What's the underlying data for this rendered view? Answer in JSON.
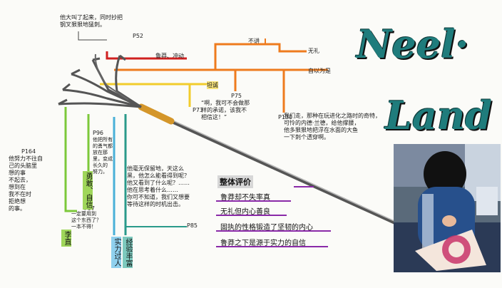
{
  "title": {
    "word1": "Neel·",
    "word2": "Land"
  },
  "notes": {
    "top_quote": "他大叫了起来，同时抄把\n钢叉狠狠地猛刺。",
    "p130": "我们走，那种在玩进化之路时的奇特，\n可怜的内德·兰德，给他撑腰，\n他多狠狠地把浮在水面的大鱼\n一下刺个透穿啊。",
    "p73_quote": "“啊，我可不会做那\n样的承诺，该我不\n相信这！”",
    "p164": "他努力不往自\n己的头脑里\n想的事\n不起去，\n想到在\n我不在时\n拒绝想\n的事。",
    "p96": "他把所有\n的勇气都\n放在那\n里，变成\n长久的\n努力。",
    "mid_quote": "他毫无保留地，天这么\n黑，他怎么能看得到呢？\n他又看到了什么呢？……\n他在思考着什么……\n你可不知道，我们又想要\n等待这样的时机出击。",
    "p97": "一定要用到\n这个东西了？\n一本不得！"
  },
  "tags": {
    "p52": "P52",
    "p164": "P164",
    "p96": "P96",
    "p97": "P97",
    "p73": "P73",
    "p75": "P75",
    "p130": "P130",
    "p85": "P85",
    "branch_1": "鲁莽、冲动",
    "branch_2": "不讲",
    "branch_3": "无礼",
    "branch_4": "自以为是",
    "branch_5": "坦诚"
  },
  "vertical_labels": {
    "label_a": "李直",
    "label_b": "勇敢、自信",
    "label_c": "实力过人",
    "label_d": "经验丰富"
  },
  "evaluation": {
    "heading": "整体评价",
    "items": [
      "鲁莽却不失率真",
      "无礼但内心善良",
      "固执的性格锻造了坚韧的内心",
      "鲁莽之下是源于实力的自信"
    ]
  }
}
